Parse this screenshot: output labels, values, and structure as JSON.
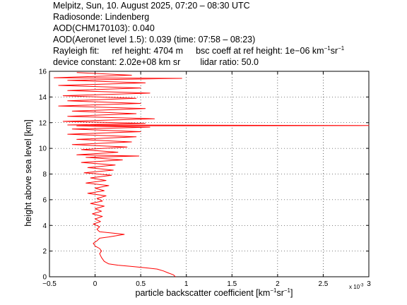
{
  "header": {
    "line1": "Melpitz, Sun, 10. August 2025, 07:20 – 08:30 UTC",
    "line2": "Radiosonde: Lindenberg",
    "line3": "AOD(CHM170103): 0.040",
    "line4": "AOD(Aeronet level 1.5): 0.039   (time: 07:58 – 08:23)",
    "rayleigh_fit": "Rayleigh fit:",
    "ref_height": "ref height: 4704 m",
    "bsc_coeff_prefix": "bsc coeff at ref height: 1e−06 km",
    "bsc_unit_exp1": "−1",
    "bsc_unit_mid": "sr",
    "bsc_unit_exp2": "−1",
    "device_constant": "device constant: 2.02e+08 km sr",
    "lidar_ratio": "lidar ratio: 50.0"
  },
  "axes": {
    "xlabel_prefix": "particle backscatter coefficient [km",
    "xlabel_exp1": "−1",
    "xlabel_mid": "sr",
    "xlabel_exp2": "−1",
    "xlabel_suffix": "]",
    "ylabel": "height above sea level [km]",
    "x_multiplier_base": "x 10",
    "x_multiplier_exp": "-3"
  },
  "chart_data": {
    "type": "line",
    "xlim": [
      -0.5,
      3.0
    ],
    "ylim": [
      0,
      16
    ],
    "x_ticks": [
      -0.5,
      0,
      0.5,
      1,
      1.5,
      2,
      2.5,
      3
    ],
    "x_tick_labels": [
      "−0.5",
      "0",
      "0.5",
      "1",
      "1.5",
      "2",
      "2.5",
      "3"
    ],
    "y_ticks": [
      0,
      2,
      4,
      6,
      8,
      10,
      12,
      14,
      16
    ],
    "y_tick_labels": [
      "0",
      "2",
      "4",
      "6",
      "8",
      "10",
      "12",
      "14",
      "16"
    ],
    "x_scale_exponent": -3,
    "grid": true,
    "series_color": "#ff0000",
    "series": [
      {
        "name": "",
        "points": [
          [
            0.88,
            0.0
          ],
          [
            0.86,
            0.15
          ],
          [
            0.8,
            0.3
          ],
          [
            0.75,
            0.45
          ],
          [
            0.68,
            0.6
          ],
          [
            0.55,
            0.7
          ],
          [
            0.4,
            0.8
          ],
          [
            0.25,
            0.9
          ],
          [
            0.15,
            1.0
          ],
          [
            0.1,
            1.2
          ],
          [
            0.07,
            1.5
          ],
          [
            0.05,
            1.8
          ],
          [
            0.07,
            2.0
          ],
          [
            0.05,
            2.2
          ],
          [
            0.0,
            2.4
          ],
          [
            -0.02,
            2.6
          ],
          [
            0.02,
            2.8
          ],
          [
            0.05,
            3.0
          ],
          [
            0.15,
            3.1
          ],
          [
            0.32,
            3.3
          ],
          [
            0.2,
            3.4
          ],
          [
            0.05,
            3.5
          ],
          [
            0.02,
            3.7
          ],
          [
            0.05,
            3.9
          ],
          [
            -0.02,
            4.1
          ],
          [
            0.06,
            4.3
          ],
          [
            0.0,
            4.5
          ],
          [
            0.08,
            4.7
          ],
          [
            -0.03,
            4.9
          ],
          [
            0.07,
            5.1
          ],
          [
            0.0,
            5.3
          ],
          [
            0.1,
            5.5
          ],
          [
            -0.05,
            5.7
          ],
          [
            0.08,
            5.9
          ],
          [
            0.02,
            6.1
          ],
          [
            0.12,
            6.3
          ],
          [
            -0.08,
            6.5
          ],
          [
            0.1,
            6.7
          ],
          [
            0.0,
            6.9
          ],
          [
            0.15,
            7.1
          ],
          [
            -0.1,
            7.3
          ],
          [
            0.12,
            7.5
          ],
          [
            -0.05,
            7.7
          ],
          [
            0.18,
            7.9
          ],
          [
            -0.12,
            8.1
          ],
          [
            0.2,
            8.3
          ],
          [
            -0.08,
            8.5
          ],
          [
            0.22,
            8.7
          ],
          [
            -0.15,
            8.9
          ],
          [
            0.3,
            9.1
          ],
          [
            -0.1,
            9.3
          ],
          [
            0.48,
            9.4
          ],
          [
            -0.2,
            9.5
          ],
          [
            0.25,
            9.7
          ],
          [
            -0.15,
            9.9
          ],
          [
            0.35,
            10.1
          ],
          [
            -0.25,
            10.3
          ],
          [
            0.4,
            10.5
          ],
          [
            -0.2,
            10.7
          ],
          [
            0.45,
            10.9
          ],
          [
            -0.3,
            11.1
          ],
          [
            0.5,
            11.3
          ],
          [
            -0.25,
            11.5
          ],
          [
            0.6,
            11.65
          ],
          [
            -0.2,
            11.75
          ],
          [
            3.0,
            11.78
          ],
          [
            -0.3,
            11.82
          ],
          [
            0.55,
            11.95
          ],
          [
            -0.35,
            12.1
          ],
          [
            0.65,
            12.3
          ],
          [
            -0.3,
            12.5
          ],
          [
            0.45,
            12.7
          ],
          [
            -0.25,
            12.9
          ],
          [
            0.55,
            13.1
          ],
          [
            -0.4,
            13.3
          ],
          [
            0.5,
            13.5
          ],
          [
            -0.3,
            13.7
          ],
          [
            0.45,
            13.9
          ],
          [
            -0.35,
            14.1
          ],
          [
            0.6,
            14.3
          ],
          [
            -0.3,
            14.5
          ],
          [
            0.5,
            14.7
          ],
          [
            -0.4,
            14.9
          ],
          [
            0.55,
            15.1
          ],
          [
            -0.3,
            15.3
          ],
          [
            0.95,
            15.45
          ],
          [
            -0.45,
            15.5
          ],
          [
            0.4,
            15.7
          ],
          [
            -0.2,
            15.9
          ]
        ]
      }
    ]
  }
}
